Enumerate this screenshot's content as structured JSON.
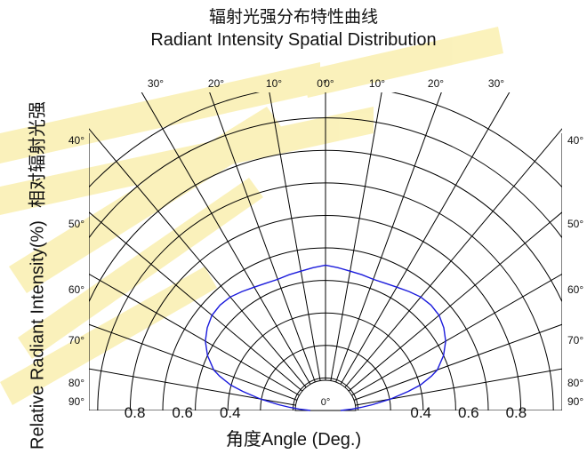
{
  "titles": {
    "title_cn": "辐射光强分布特性曲线",
    "title_en": "Radiant Intensity Spatial Distribution",
    "xlabel": "角度Angle (Deg.)",
    "ylabel_en": "Relative  Radiant Intensity(%)",
    "ylabel_cn": "相对辐射光强"
  },
  "colors": {
    "curve": "#1a1adc",
    "grid": "#000000",
    "watermark": "#f6e26a"
  },
  "chart_data": {
    "type": "polar",
    "title": "Radiant Intensity Spatial Distribution",
    "xlabel": "角度Angle (Deg.)",
    "ylabel": "Relative  Radiant Intensity(%)",
    "radial_range": [
      0,
      1.0
    ],
    "radial_rings": [
      0.1,
      0.2,
      0.3,
      0.4,
      0.5,
      0.6,
      0.7,
      0.8,
      0.9,
      1.0
    ],
    "radial_tick_labels": [
      "0.8",
      "0.6",
      "0.4",
      "0.4",
      "0.6",
      "0.8"
    ],
    "radial_tick_values": [
      -0.8,
      -0.6,
      -0.4,
      0.4,
      0.6,
      0.8
    ],
    "center_label": "0°",
    "angle_spokes_deg": [
      -90,
      -80,
      -70,
      -60,
      -50,
      -40,
      -30,
      -20,
      -10,
      0,
      10,
      20,
      30,
      40,
      50,
      60,
      70,
      80,
      90
    ],
    "top_angle_labels": [
      {
        "text": "30°",
        "deg": -30
      },
      {
        "text": "20°",
        "deg": -20
      },
      {
        "text": "10°",
        "deg": -10
      },
      {
        "text": "0°",
        "deg": 0
      },
      {
        "text": "0°",
        "deg": 0
      },
      {
        "text": "10°",
        "deg": 10
      },
      {
        "text": "20°",
        "deg": 20
      },
      {
        "text": "30°",
        "deg": 30
      }
    ],
    "side_angle_labels": [
      {
        "text": "40°",
        "deg": 40
      },
      {
        "text": "50°",
        "deg": 50
      },
      {
        "text": "60°",
        "deg": 60
      },
      {
        "text": "70°",
        "deg": 70
      },
      {
        "text": "80°",
        "deg": 80
      },
      {
        "text": "90°",
        "deg": 90
      }
    ],
    "series": [
      {
        "angles_deg": [
          -90,
          -87,
          -85,
          -83,
          -80,
          -77,
          -75,
          -72,
          -70,
          -65,
          -60,
          -55,
          -50,
          -45,
          -40,
          -35,
          -30,
          -25,
          -20,
          -15,
          -10,
          -5,
          0,
          5,
          10,
          15,
          20,
          25,
          30,
          35,
          40,
          45,
          50,
          55,
          60,
          65,
          70,
          72,
          75,
          77,
          80,
          83,
          85,
          87,
          90
        ],
        "values": [
          0.08,
          0.14,
          0.19,
          0.25,
          0.35,
          0.45,
          0.52,
          0.59,
          0.63,
          0.69,
          0.735,
          0.765,
          0.785,
          0.79,
          0.785,
          0.77,
          0.755,
          0.745,
          0.74,
          0.745,
          0.75,
          0.76,
          0.77,
          0.76,
          0.75,
          0.745,
          0.74,
          0.745,
          0.755,
          0.77,
          0.785,
          0.79,
          0.785,
          0.765,
          0.735,
          0.69,
          0.63,
          0.59,
          0.52,
          0.45,
          0.35,
          0.25,
          0.19,
          0.14,
          0.08
        ]
      }
    ]
  }
}
